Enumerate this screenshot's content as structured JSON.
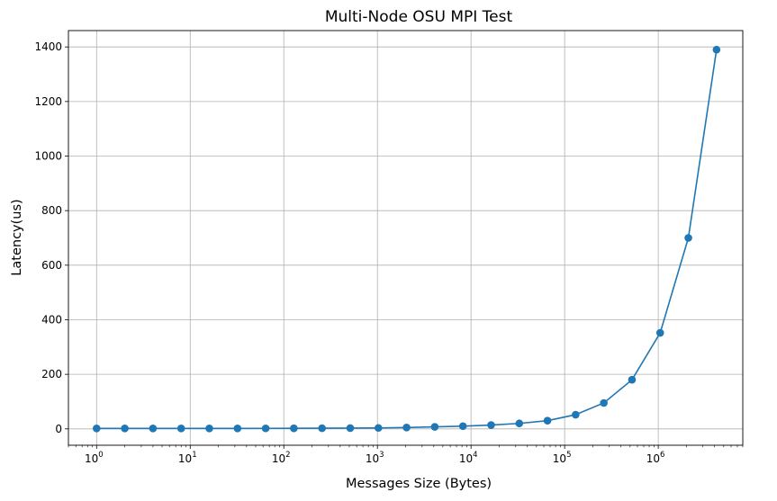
{
  "chart_data": {
    "type": "line",
    "title": "Multi-Node OSU MPI Test",
    "xlabel": "Messages Size (Bytes)",
    "ylabel": "Latency(us)",
    "x_scale": "log",
    "xlim": [
      0.5,
      8000000
    ],
    "ylim": [
      -60,
      1460
    ],
    "grid": true,
    "x_ticks": [
      {
        "value": 1,
        "base": "10",
        "exp": "0"
      },
      {
        "value": 10,
        "base": "10",
        "exp": "1"
      },
      {
        "value": 100,
        "base": "10",
        "exp": "2"
      },
      {
        "value": 1000,
        "base": "10",
        "exp": "3"
      },
      {
        "value": 10000,
        "base": "10",
        "exp": "4"
      },
      {
        "value": 100000,
        "base": "10",
        "exp": "5"
      },
      {
        "value": 1000000,
        "base": "10",
        "exp": "6"
      }
    ],
    "y_ticks": [
      {
        "value": 0,
        "label": "0"
      },
      {
        "value": 200,
        "label": "200"
      },
      {
        "value": 400,
        "label": "400"
      },
      {
        "value": 600,
        "label": "600"
      },
      {
        "value": 800,
        "label": "800"
      },
      {
        "value": 1000,
        "label": "1000"
      },
      {
        "value": 1200,
        "label": "1200"
      },
      {
        "value": 1400,
        "label": "1400"
      }
    ],
    "series": [
      {
        "color": "#1f77b4",
        "marker": "circle",
        "x": [
          1,
          2,
          4,
          8,
          16,
          32,
          64,
          128,
          256,
          512,
          1024,
          2048,
          4096,
          8192,
          16384,
          32768,
          65536,
          131072,
          262144,
          524288,
          1048576,
          2097152,
          4194304
        ],
        "y": [
          1.5,
          1.5,
          1.5,
          1.5,
          1.6,
          1.7,
          1.8,
          2.0,
          2.3,
          2.8,
          3.5,
          5.0,
          7.5,
          10,
          14,
          20,
          30,
          52,
          95,
          180,
          352,
          700,
          1390
        ]
      }
    ]
  }
}
